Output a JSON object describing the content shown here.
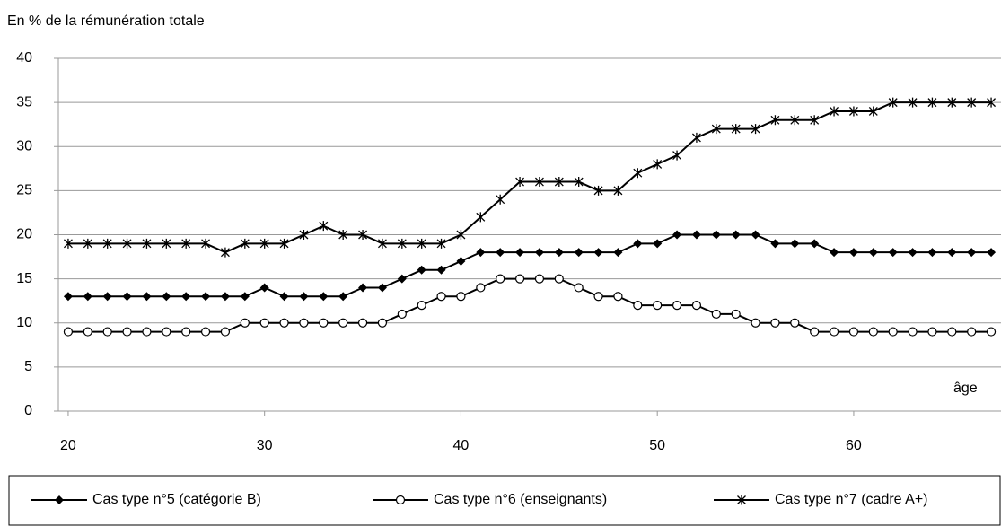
{
  "chart_data": {
    "type": "line",
    "y_axis_label": "En % de la rémunération totale",
    "annotation": "âge",
    "x": [
      20,
      21,
      22,
      23,
      24,
      25,
      26,
      27,
      28,
      29,
      30,
      31,
      32,
      33,
      34,
      35,
      36,
      37,
      38,
      39,
      40,
      41,
      42,
      43,
      44,
      45,
      46,
      47,
      48,
      49,
      50,
      51,
      52,
      53,
      54,
      55,
      56,
      57,
      58,
      59,
      60,
      61,
      62,
      63,
      64,
      65,
      66,
      67
    ],
    "xlim": [
      19.5,
      67.5
    ],
    "xticks": [
      20,
      30,
      40,
      50,
      60
    ],
    "ylim": [
      0,
      40
    ],
    "yticks": [
      0,
      5,
      10,
      15,
      20,
      25,
      30,
      35,
      40
    ],
    "grid": true,
    "series": [
      {
        "name": "Cas type n°5 (catégorie B)",
        "color": "#000000",
        "marker": "diamond",
        "values": [
          13,
          13,
          13,
          13,
          13,
          13,
          13,
          13,
          13,
          13,
          14,
          13,
          13,
          13,
          13,
          14,
          14,
          15,
          16,
          16,
          17,
          18,
          18,
          18,
          18,
          18,
          18,
          18,
          18,
          19,
          19,
          20,
          20,
          20,
          20,
          20,
          19,
          19,
          19,
          18,
          18,
          18,
          18,
          18,
          18,
          18,
          18,
          18
        ]
      },
      {
        "name": "Cas type n°6 (enseignants)",
        "color": "#000000",
        "marker": "circle",
        "values": [
          9,
          9,
          9,
          9,
          9,
          9,
          9,
          9,
          9,
          10,
          10,
          10,
          10,
          10,
          10,
          10,
          10,
          11,
          12,
          13,
          13,
          14,
          15,
          15,
          15,
          15,
          14,
          13,
          13,
          12,
          12,
          12,
          12,
          11,
          11,
          10,
          10,
          10,
          9,
          9,
          9,
          9,
          9,
          9,
          9,
          9,
          9,
          9
        ]
      },
      {
        "name": "Cas type n°7 (cadre A+)",
        "color": "#000000",
        "marker": "star",
        "values": [
          19,
          19,
          19,
          19,
          19,
          19,
          19,
          19,
          18,
          19,
          19,
          19,
          20,
          21,
          20,
          20,
          19,
          19,
          19,
          19,
          20,
          22,
          24,
          26,
          26,
          26,
          26,
          25,
          25,
          27,
          28,
          29,
          31,
          32,
          32,
          32,
          33,
          33,
          33,
          34,
          34,
          34,
          35,
          35,
          35,
          35,
          35,
          35
        ]
      }
    ]
  }
}
